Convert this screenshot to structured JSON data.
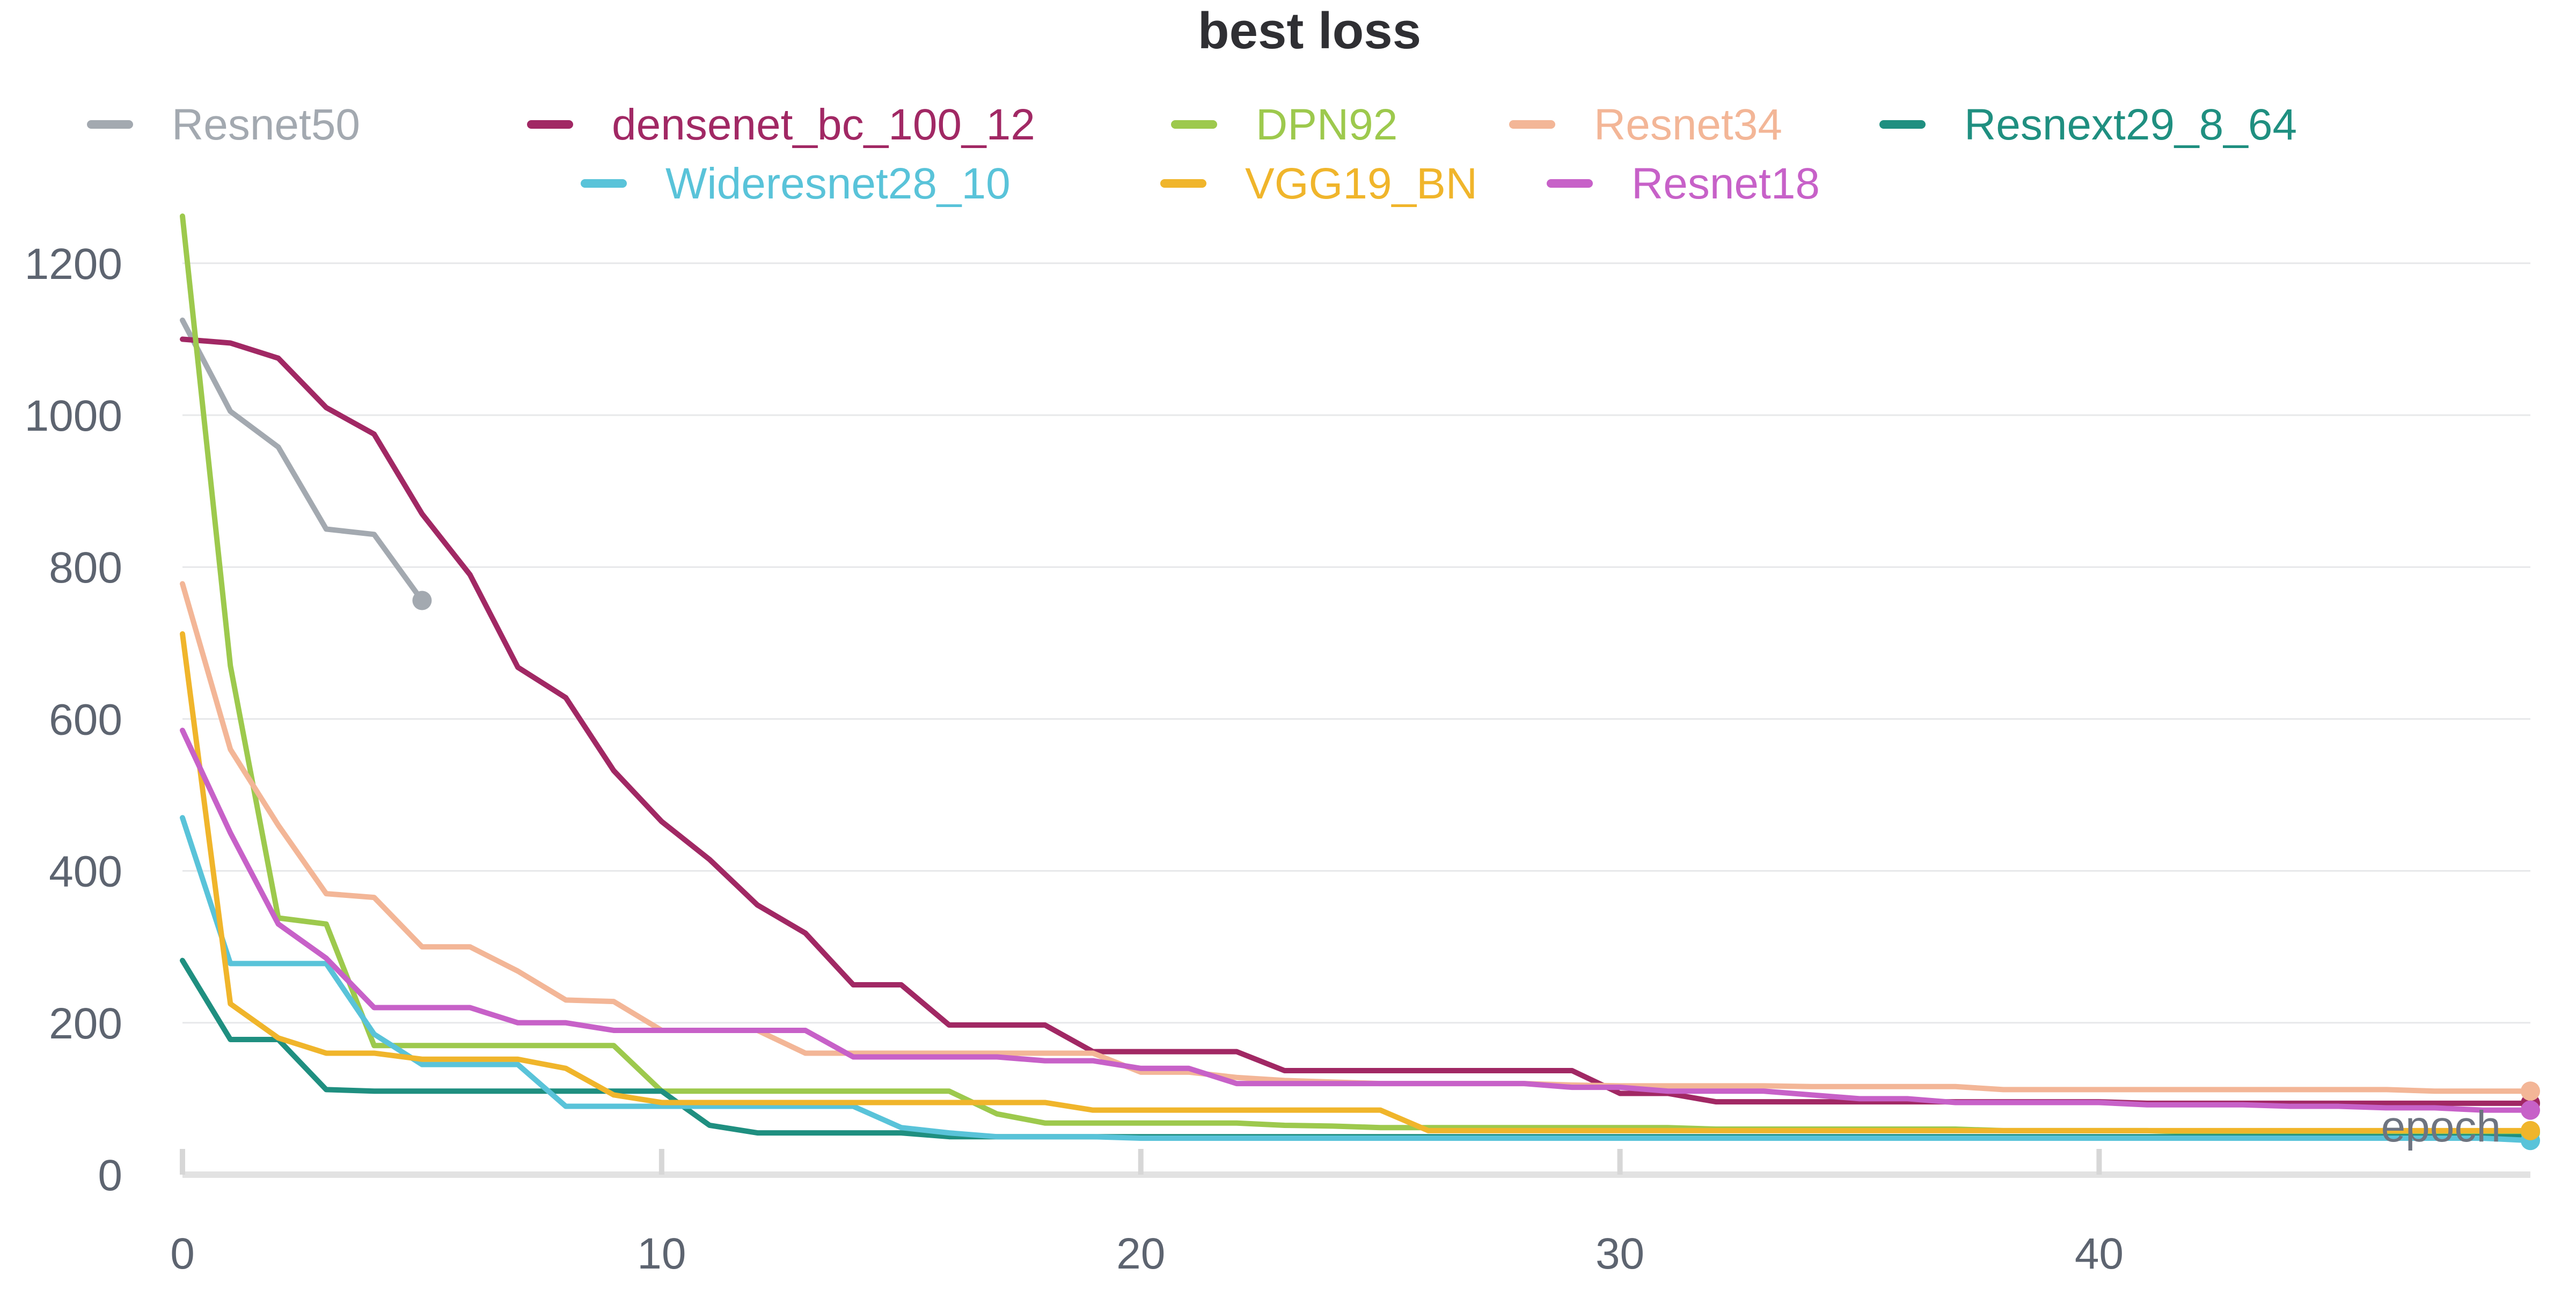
{
  "chart_data": {
    "type": "line",
    "title": "best loss",
    "xlabel": "epoch",
    "ylabel": "",
    "xlim": [
      0,
      49
    ],
    "ylim": [
      0,
      1250
    ],
    "xticks": [
      0,
      10,
      20,
      30,
      40
    ],
    "yticks": [
      0,
      200,
      400,
      600,
      800,
      1000,
      1200
    ],
    "grid": true,
    "legend": "top",
    "series": [
      {
        "name": "Resnet50",
        "color": "#a3a9b0",
        "x": [
          0,
          1,
          2,
          3,
          4,
          5
        ],
        "values": [
          1125,
          1005,
          958,
          850,
          843,
          756
        ],
        "end_marker": true
      },
      {
        "name": "densenet_bc_100_12",
        "color": "#a12864",
        "x": [
          0,
          1,
          2,
          3,
          4,
          5,
          6,
          7,
          8,
          9,
          10,
          11,
          12,
          13,
          14,
          15,
          16,
          17,
          18,
          19,
          20,
          21,
          22,
          23,
          24,
          25,
          26,
          27,
          28,
          29,
          30,
          31,
          32,
          33,
          34,
          35,
          36,
          37,
          38,
          39,
          40,
          41,
          42,
          43,
          44,
          45,
          46,
          47,
          48,
          49
        ],
        "values": [
          1100,
          1095,
          1075,
          1010,
          975,
          870,
          790,
          668,
          628,
          532,
          465,
          415,
          355,
          318,
          250,
          250,
          197,
          197,
          197,
          162,
          162,
          162,
          162,
          137,
          137,
          137,
          137,
          137,
          137,
          137,
          107,
          107,
          96,
          96,
          96,
          96,
          96,
          96,
          96,
          96,
          96,
          94,
          94,
          94,
          94,
          94,
          94,
          94,
          94,
          94
        ],
        "end_marker": true
      },
      {
        "name": "DPN92",
        "color": "#9dc94d",
        "x": [
          0,
          1,
          2,
          3,
          4,
          5,
          6,
          7,
          8,
          9,
          10,
          11,
          12,
          13,
          14,
          15,
          16,
          17,
          18,
          19,
          20,
          21,
          22,
          23,
          24,
          25,
          26,
          27,
          28,
          29,
          30,
          31,
          32,
          33,
          34,
          35,
          36,
          37,
          38,
          39,
          40,
          41,
          42,
          43,
          44,
          45,
          46,
          47,
          48,
          49
        ],
        "values": [
          1262,
          670,
          338,
          330,
          170,
          170,
          170,
          170,
          170,
          170,
          110,
          110,
          110,
          110,
          110,
          110,
          110,
          80,
          68,
          68,
          68,
          68,
          68,
          65,
          64,
          62,
          62,
          62,
          62,
          62,
          62,
          62,
          60,
          60,
          60,
          60,
          60,
          60,
          58,
          58,
          58,
          58,
          56,
          56,
          56,
          56,
          56,
          56,
          56,
          56
        ],
        "end_marker": true
      },
      {
        "name": "Resnet34",
        "color": "#f3b697",
        "x": [
          0,
          1,
          2,
          3,
          4,
          5,
          6,
          7,
          8,
          9,
          10,
          11,
          12,
          13,
          14,
          15,
          16,
          17,
          18,
          19,
          20,
          21,
          22,
          23,
          24,
          25,
          26,
          27,
          28,
          29,
          30,
          31,
          32,
          33,
          34,
          35,
          36,
          37,
          38,
          39,
          40,
          41,
          42,
          43,
          44,
          45,
          46,
          47,
          48,
          49
        ],
        "values": [
          778,
          560,
          460,
          370,
          365,
          300,
          300,
          268,
          230,
          228,
          190,
          190,
          190,
          160,
          160,
          160,
          160,
          160,
          160,
          160,
          135,
          135,
          128,
          124,
          122,
          120,
          120,
          120,
          120,
          118,
          117,
          117,
          117,
          117,
          116,
          116,
          116,
          116,
          112,
          112,
          112,
          112,
          112,
          112,
          112,
          112,
          112,
          110,
          110,
          110
        ],
        "end_marker": true
      },
      {
        "name": "Resnext29_8_64",
        "color": "#1f8f80",
        "x": [
          0,
          1,
          2,
          3,
          4,
          5,
          6,
          7,
          8,
          9,
          10,
          11,
          12,
          13,
          14,
          15,
          16,
          17,
          18,
          19,
          20,
          21,
          22,
          23,
          24,
          25,
          26,
          27,
          28,
          29,
          30,
          31,
          32,
          33,
          34,
          35,
          36,
          37,
          38,
          39,
          40,
          41,
          42,
          43,
          44,
          45,
          46,
          47,
          48,
          49
        ],
        "values": [
          282,
          178,
          178,
          112,
          110,
          110,
          110,
          110,
          110,
          110,
          110,
          65,
          55,
          55,
          55,
          55,
          50,
          50,
          50,
          50,
          50,
          50,
          50,
          50,
          50,
          50,
          50,
          50,
          50,
          50,
          50,
          50,
          50,
          50,
          50,
          50,
          50,
          50,
          50,
          50,
          50,
          50,
          50,
          50,
          50,
          50,
          50,
          50,
          50,
          50
        ],
        "end_marker": false
      },
      {
        "name": "Wideresnet28_10",
        "color": "#59c3d9",
        "x": [
          0,
          1,
          2,
          3,
          4,
          5,
          6,
          7,
          8,
          9,
          10,
          11,
          12,
          13,
          14,
          15,
          16,
          17,
          18,
          19,
          20,
          21,
          22,
          23,
          24,
          25,
          26,
          27,
          28,
          29,
          30,
          31,
          32,
          33,
          34,
          35,
          36,
          37,
          38,
          39,
          40,
          41,
          42,
          43,
          44,
          45,
          46,
          47,
          48,
          49
        ],
        "values": [
          470,
          278,
          278,
          278,
          185,
          145,
          145,
          145,
          90,
          90,
          90,
          90,
          90,
          90,
          90,
          62,
          55,
          50,
          50,
          50,
          48,
          48,
          48,
          48,
          48,
          48,
          48,
          48,
          48,
          48,
          48,
          48,
          48,
          48,
          48,
          48,
          48,
          48,
          48,
          48,
          48,
          48,
          48,
          48,
          48,
          48,
          48,
          48,
          48,
          45
        ],
        "end_marker": true
      },
      {
        "name": "VGG19_BN",
        "color": "#f0b52b",
        "x": [
          0,
          1,
          2,
          3,
          4,
          5,
          6,
          7,
          8,
          9,
          10,
          11,
          12,
          13,
          14,
          15,
          16,
          17,
          18,
          19,
          20,
          21,
          22,
          23,
          24,
          25,
          26,
          27,
          28,
          29,
          30,
          31,
          32,
          33,
          34,
          35,
          36,
          37,
          38,
          39,
          40,
          41,
          42,
          43,
          44,
          45,
          46,
          47,
          48,
          49
        ],
        "values": [
          712,
          225,
          180,
          160,
          160,
          152,
          152,
          152,
          140,
          105,
          95,
          95,
          95,
          95,
          95,
          95,
          95,
          95,
          95,
          85,
          85,
          85,
          85,
          85,
          85,
          85,
          58,
          58,
          58,
          58,
          58,
          58,
          58,
          58,
          58,
          58,
          58,
          58,
          58,
          58,
          58,
          58,
          58,
          58,
          58,
          58,
          58,
          58,
          58,
          58
        ],
        "end_marker": true
      },
      {
        "name": "Resnet18",
        "color": "#c761c8",
        "x": [
          0,
          1,
          2,
          3,
          4,
          5,
          6,
          7,
          8,
          9,
          10,
          11,
          12,
          13,
          14,
          15,
          16,
          17,
          18,
          19,
          20,
          21,
          22,
          23,
          24,
          25,
          26,
          27,
          28,
          29,
          30,
          31,
          32,
          33,
          34,
          35,
          36,
          37,
          38,
          39,
          40,
          41,
          42,
          43,
          44,
          45,
          46,
          47,
          48,
          49
        ],
        "values": [
          585,
          450,
          330,
          285,
          220,
          220,
          220,
          200,
          200,
          190,
          190,
          190,
          190,
          190,
          155,
          155,
          155,
          155,
          150,
          150,
          140,
          140,
          120,
          120,
          120,
          120,
          120,
          120,
          120,
          115,
          115,
          110,
          110,
          110,
          105,
          100,
          100,
          95,
          95,
          95,
          95,
          92,
          92,
          92,
          90,
          90,
          88,
          88,
          85,
          85
        ],
        "end_marker": true
      }
    ]
  }
}
